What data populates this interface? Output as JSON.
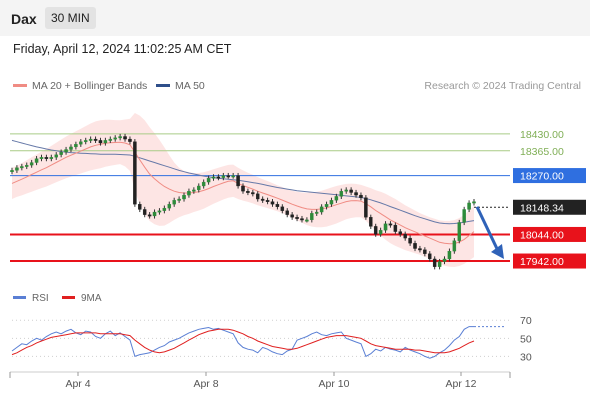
{
  "header": {
    "symbol": "Dax",
    "timeframe": "30 MIN"
  },
  "datetime": "Friday, April 12, 2024 11:02:25 AM CET",
  "legend": {
    "ma20_label": "MA 20 + Bollinger Bands",
    "ma20_color": "#f08c84",
    "ma50_label": "MA 50",
    "ma50_color": "#2f4f8a"
  },
  "copyright": "Research © 2024 Trading Central",
  "rsi_legend": {
    "rsi_label": "RSI",
    "rsi_color": "#5a7fd4",
    "ma_label": "9MA",
    "ma_color": "#e02020"
  },
  "chart_data": {
    "type": "candlestick",
    "ylim": [
      17850,
      18560
    ],
    "x_ticks": [
      "Apr 4",
      "Apr 8",
      "Apr 10",
      "Apr 12"
    ],
    "price_levels": [
      {
        "value": 18430,
        "label": "18430.00",
        "kind": "target",
        "color": "#a9cc86",
        "text_color": "#7fae55"
      },
      {
        "value": 18365,
        "label": "18365.00",
        "kind": "target",
        "color": "#a9cc86",
        "text_color": "#7fae55"
      },
      {
        "value": 18270,
        "label": "18270.00",
        "kind": "pivot",
        "color": "#2f6fe0",
        "text_color": "#ffffff"
      },
      {
        "value": 18044,
        "label": "18044.00",
        "kind": "support",
        "color": "#e8121b",
        "text_color": "#ffffff"
      },
      {
        "value": 17942,
        "label": "17942.00",
        "kind": "support",
        "color": "#e8121b",
        "text_color": "#ffffff"
      }
    ],
    "last_price": {
      "value": 18148.34,
      "label": "18148.34"
    },
    "close_series": [
      18290,
      18300,
      18305,
      18310,
      18320,
      18335,
      18340,
      18335,
      18340,
      18350,
      18360,
      18370,
      18380,
      18390,
      18400,
      18405,
      18410,
      18405,
      18395,
      18405,
      18410,
      18415,
      18420,
      18410,
      18400,
      18160,
      18140,
      18120,
      18115,
      18130,
      18135,
      18145,
      18160,
      18175,
      18180,
      18195,
      18210,
      18215,
      18230,
      18245,
      18260,
      18265,
      18262,
      18270,
      18268,
      18270,
      18230,
      18210,
      18205,
      18200,
      18180,
      18175,
      18170,
      18160,
      18150,
      18135,
      18120,
      18110,
      18105,
      18100,
      18100,
      18125,
      18130,
      18150,
      18160,
      18175,
      18190,
      18210,
      18215,
      18205,
      18195,
      18185,
      18110,
      18075,
      18045,
      18060,
      18085,
      18080,
      18055,
      18045,
      18030,
      18010,
      17990,
      17985,
      17970,
      17950,
      17920,
      17940,
      17950,
      17980,
      18020,
      18090,
      18140,
      18165,
      18170
    ],
    "ma20_series": [
      18240,
      18248,
      18256,
      18265,
      18274,
      18283,
      18292,
      18300,
      18310,
      18320,
      18330,
      18340,
      18348,
      18356,
      18364,
      18372,
      18380,
      18386,
      18390,
      18394,
      18396,
      18397,
      18398,
      18395,
      18388,
      18360,
      18330,
      18302,
      18276,
      18258,
      18242,
      18228,
      18218,
      18210,
      18205,
      18203,
      18203,
      18205,
      18208,
      18213,
      18220,
      18228,
      18235,
      18242,
      18248,
      18250,
      18240,
      18232,
      18225,
      18218,
      18210,
      18203,
      18197,
      18190,
      18183,
      18176,
      18168,
      18160,
      18153,
      18147,
      18142,
      18140,
      18140,
      18142,
      18146,
      18152,
      18158,
      18164,
      18170,
      18173,
      18174,
      18172,
      18162,
      18150,
      18136,
      18124,
      18112,
      18100,
      18090,
      18080,
      18070,
      18062,
      18054,
      18046,
      18038,
      18030,
      18022,
      18014,
      18010,
      18008,
      18009,
      18015,
      18025,
      18040,
      18055
    ],
    "ma50_series": [
      18405,
      18400,
      18395,
      18390,
      18385,
      18380,
      18376,
      18372,
      18368,
      18365,
      18362,
      18360,
      18358,
      18357,
      18356,
      18355,
      18354,
      18353,
      18352,
      18352,
      18352,
      18352,
      18351,
      18350,
      18349,
      18344,
      18338,
      18332,
      18326,
      18320,
      18314,
      18308,
      18302,
      18296,
      18290,
      18285,
      18280,
      18276,
      18272,
      18268,
      18265,
      18262,
      18260,
      18258,
      18256,
      18254,
      18252,
      18249,
      18246,
      18243,
      18240,
      18236,
      18232,
      18228,
      18224,
      18221,
      18218,
      18215,
      18212,
      18210,
      18208,
      18206,
      18204,
      18202,
      18200,
      18198,
      18196,
      18194,
      18192,
      18190,
      18188,
      18186,
      18182,
      18177,
      18171,
      18165,
      18158,
      18151,
      18144,
      18137,
      18130,
      18123,
      18116,
      18110,
      18104,
      18098,
      18092,
      18088,
      18086,
      18085,
      18086,
      18088,
      18091,
      18094,
      18097
    ],
    "band_half_width": [
      60,
      60,
      62,
      64,
      66,
      68,
      70,
      72,
      74,
      76,
      78,
      80,
      82,
      84,
      86,
      88,
      90,
      92,
      92,
      90,
      88,
      86,
      84,
      90,
      100,
      150,
      170,
      180,
      180,
      175,
      165,
      150,
      130,
      110,
      95,
      85,
      80,
      75,
      72,
      70,
      68,
      66,
      65,
      64,
      63,
      62,
      60,
      58,
      56,
      55,
      54,
      53,
      52,
      51,
      50,
      50,
      50,
      52,
      55,
      58,
      62,
      66,
      68,
      70,
      72,
      72,
      72,
      70,
      68,
      66,
      64,
      62,
      66,
      72,
      78,
      84,
      88,
      90,
      90,
      88,
      86,
      84,
      82,
      80,
      80,
      80,
      82,
      84,
      86,
      88,
      90,
      92,
      94,
      96,
      98
    ],
    "rsi": {
      "ylim": [
        15,
        78
      ],
      "ticks": [
        70,
        50,
        30
      ],
      "rsi_series": [
        36,
        40,
        44,
        43,
        47,
        50,
        48,
        52,
        55,
        57,
        55,
        58,
        60,
        56,
        54,
        58,
        57,
        52,
        50,
        55,
        58,
        53,
        56,
        52,
        48,
        30,
        32,
        33,
        34,
        37,
        40,
        42,
        46,
        48,
        50,
        53,
        56,
        58,
        60,
        61,
        62,
        60,
        61,
        59,
        57,
        55,
        45,
        40,
        38,
        37,
        34,
        40,
        38,
        35,
        33,
        32,
        36,
        38,
        48,
        50,
        52,
        55,
        57,
        54,
        53,
        55,
        56,
        57,
        50,
        48,
        46,
        44,
        30,
        33,
        38,
        36,
        40,
        38,
        37,
        35,
        40,
        37,
        35,
        33,
        30,
        28,
        30,
        34,
        37,
        42,
        48,
        52,
        60,
        63,
        63
      ],
      "ma9_series": [
        32,
        34,
        37,
        40,
        42,
        45,
        47,
        49,
        51,
        52,
        53,
        54,
        55,
        56,
        56,
        56,
        56,
        56,
        55,
        55,
        55,
        55,
        55,
        54,
        53,
        48,
        44,
        40,
        37,
        35,
        34,
        35,
        37,
        39,
        42,
        45,
        48,
        51,
        54,
        56,
        58,
        59,
        60,
        60,
        60,
        59,
        57,
        55,
        52,
        50,
        47,
        45,
        43,
        41,
        40,
        39,
        38,
        38,
        39,
        41,
        43,
        45,
        47,
        49,
        51,
        52,
        53,
        53,
        53,
        52,
        51,
        50,
        47,
        44,
        42,
        41,
        40,
        39,
        38,
        38,
        38,
        38,
        37,
        37,
        36,
        35,
        34,
        34,
        34,
        35,
        37,
        39,
        42,
        45,
        47
      ]
    }
  }
}
